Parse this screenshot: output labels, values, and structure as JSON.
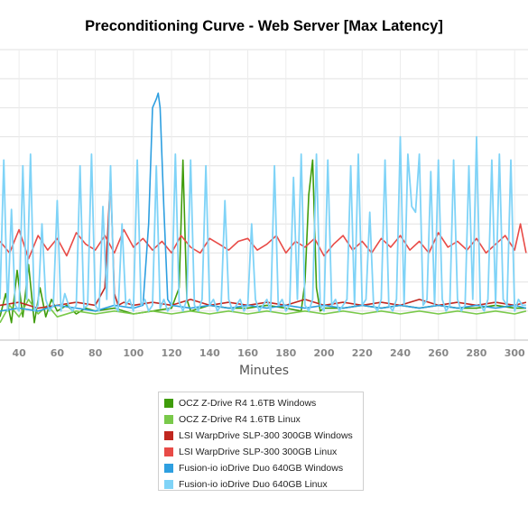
{
  "chart_data": {
    "type": "line",
    "title": "Preconditioning Curve - Web Server [Max Latency]",
    "xlabel": "Minutes",
    "ylabel": "",
    "xlim": [
      30,
      307
    ],
    "ylim": [
      0,
      100
    ],
    "x_ticks": [
      40,
      60,
      80,
      100,
      120,
      140,
      160,
      180,
      200,
      220,
      240,
      260,
      280,
      300
    ],
    "grid": true,
    "legend_position": "bottom-center",
    "series": [
      {
        "name": "OCZ Z-Drive R4 1.6TB Windows",
        "color": "#3f9c0b",
        "x": [
          30,
          33,
          36,
          39,
          42,
          45,
          48,
          51,
          54,
          57,
          60,
          65,
          70,
          75,
          80,
          90,
          100,
          110,
          120,
          124,
          126,
          128,
          130,
          140,
          150,
          160,
          170,
          180,
          188,
          190,
          192,
          194,
          196,
          198,
          200,
          210,
          220,
          230,
          240,
          250,
          260,
          270,
          280,
          290,
          300,
          306
        ],
        "y": [
          8,
          16,
          6,
          24,
          8,
          26,
          6,
          18,
          8,
          14,
          10,
          12,
          9,
          11,
          10,
          11,
          9,
          10,
          11,
          18,
          62,
          14,
          10,
          12,
          11,
          11,
          12,
          11,
          10,
          20,
          50,
          62,
          18,
          10,
          11,
          11,
          12,
          11,
          12,
          11,
          12,
          11,
          11,
          12,
          11,
          11
        ]
      },
      {
        "name": "OCZ Z-Drive R4 1.6TB Linux",
        "color": "#79c94a",
        "x": [
          30,
          35,
          40,
          45,
          50,
          55,
          60,
          70,
          80,
          90,
          100,
          110,
          120,
          130,
          140,
          150,
          160,
          170,
          180,
          190,
          200,
          210,
          220,
          230,
          240,
          250,
          260,
          270,
          280,
          290,
          300,
          306
        ],
        "y": [
          6,
          12,
          8,
          14,
          9,
          12,
          8,
          10,
          9,
          10,
          9,
          10,
          9,
          10,
          9,
          10,
          9,
          10,
          9,
          10,
          9,
          10,
          9,
          10,
          9,
          10,
          9,
          10,
          9,
          10,
          9,
          10
        ]
      },
      {
        "name": "LSI WarpDrive SLP-300 300GB Windows",
        "color": "#c0271f",
        "x": [
          30,
          40,
          50,
          60,
          70,
          80,
          85,
          88,
          90,
          92,
          95,
          100,
          110,
          120,
          130,
          140,
          150,
          160,
          170,
          180,
          190,
          200,
          210,
          220,
          230,
          240,
          250,
          260,
          270,
          280,
          290,
          300,
          306
        ],
        "y": [
          12,
          13,
          11,
          12,
          13,
          12,
          18,
          56,
          16,
          12,
          13,
          12,
          13,
          12,
          14,
          12,
          13,
          12,
          13,
          12,
          14,
          12,
          13,
          12,
          13,
          12,
          14,
          12,
          13,
          12,
          13,
          12,
          13
        ]
      },
      {
        "name": "LSI WarpDrive SLP-300 300GB Linux",
        "color": "#e84b47",
        "x": [
          30,
          35,
          40,
          45,
          50,
          55,
          60,
          65,
          70,
          75,
          80,
          85,
          90,
          95,
          100,
          105,
          110,
          115,
          120,
          125,
          130,
          135,
          140,
          145,
          150,
          155,
          160,
          165,
          170,
          175,
          180,
          185,
          190,
          195,
          200,
          205,
          210,
          215,
          220,
          225,
          230,
          235,
          240,
          245,
          250,
          255,
          260,
          265,
          270,
          275,
          280,
          285,
          290,
          295,
          300,
          303,
          306
        ],
        "y": [
          34,
          30,
          38,
          28,
          36,
          31,
          35,
          29,
          37,
          33,
          31,
          36,
          30,
          38,
          32,
          35,
          31,
          34,
          30,
          36,
          32,
          30,
          35,
          33,
          31,
          34,
          35,
          31,
          33,
          36,
          30,
          34,
          32,
          35,
          29,
          33,
          36,
          31,
          34,
          30,
          35,
          32,
          36,
          31,
          34,
          30,
          37,
          32,
          34,
          31,
          35,
          30,
          33,
          36,
          31,
          40,
          30
        ]
      },
      {
        "name": "Fusion-io ioDrive Duo 640GB Windows",
        "color": "#2e9fe0",
        "x": [
          30,
          40,
          50,
          60,
          70,
          80,
          90,
          100,
          105,
          108,
          110,
          112,
          113,
          114,
          116,
          118,
          120,
          130,
          140,
          150,
          160,
          170,
          180,
          190,
          200,
          210,
          220,
          230,
          240,
          250,
          260,
          270,
          280,
          290,
          300,
          306
        ],
        "y": [
          10,
          11,
          10,
          12,
          11,
          10,
          12,
          11,
          12,
          40,
          80,
          83,
          85,
          80,
          45,
          14,
          12,
          11,
          12,
          11,
          12,
          11,
          12,
          11,
          12,
          11,
          12,
          11,
          12,
          11,
          12,
          11,
          12,
          11,
          12,
          11
        ]
      },
      {
        "name": "Fusion-io ioDrive Duo 640GB Linux",
        "color": "#7fd3f7",
        "x": [
          30,
          32,
          34,
          36,
          38,
          40,
          42,
          44,
          46,
          48,
          50,
          52,
          54,
          56,
          58,
          60,
          62,
          64,
          66,
          68,
          70,
          72,
          74,
          76,
          78,
          80,
          82,
          84,
          86,
          88,
          90,
          92,
          94,
          96,
          98,
          100,
          102,
          104,
          106,
          108,
          110,
          112,
          114,
          116,
          118,
          120,
          122,
          124,
          126,
          128,
          130,
          132,
          134,
          136,
          138,
          140,
          142,
          144,
          146,
          148,
          150,
          152,
          154,
          156,
          158,
          160,
          162,
          164,
          166,
          168,
          170,
          172,
          174,
          176,
          178,
          180,
          182,
          184,
          186,
          188,
          190,
          192,
          194,
          196,
          198,
          200,
          202,
          204,
          206,
          208,
          210,
          212,
          214,
          216,
          218,
          220,
          222,
          224,
          226,
          228,
          230,
          232,
          234,
          236,
          238,
          240,
          242,
          244,
          246,
          248,
          250,
          252,
          254,
          256,
          258,
          260,
          262,
          264,
          266,
          268,
          270,
          272,
          274,
          276,
          278,
          280,
          282,
          284,
          286,
          288,
          290,
          292,
          294,
          296,
          298,
          300,
          302,
          304,
          306
        ],
        "y": [
          14,
          62,
          10,
          45,
          12,
          10,
          60,
          14,
          64,
          10,
          12,
          40,
          14,
          10,
          12,
          48,
          10,
          16,
          12,
          10,
          12,
          60,
          11,
          12,
          64,
          12,
          10,
          46,
          14,
          60,
          12,
          10,
          40,
          12,
          14,
          10,
          62,
          12,
          14,
          10,
          12,
          60,
          11,
          14,
          10,
          12,
          64,
          13,
          10,
          14,
          62,
          12,
          10,
          14,
          60,
          12,
          14,
          10,
          12,
          48,
          14,
          10,
          12,
          14,
          10,
          12,
          40,
          14,
          10,
          12,
          14,
          10,
          60,
          12,
          14,
          10,
          12,
          56,
          14,
          64,
          12,
          10,
          14,
          64,
          12,
          10,
          62,
          12,
          14,
          10,
          12,
          14,
          60,
          12,
          64,
          12,
          14,
          44,
          12,
          10,
          14,
          62,
          12,
          10,
          14,
          70,
          12,
          64,
          46,
          44,
          64,
          12,
          14,
          58,
          12,
          62,
          14,
          10,
          12,
          62,
          14,
          10,
          12,
          60,
          14,
          70,
          12,
          10,
          14,
          62,
          12,
          64,
          14,
          12,
          62,
          10,
          14,
          12,
          12
        ]
      }
    ]
  }
}
